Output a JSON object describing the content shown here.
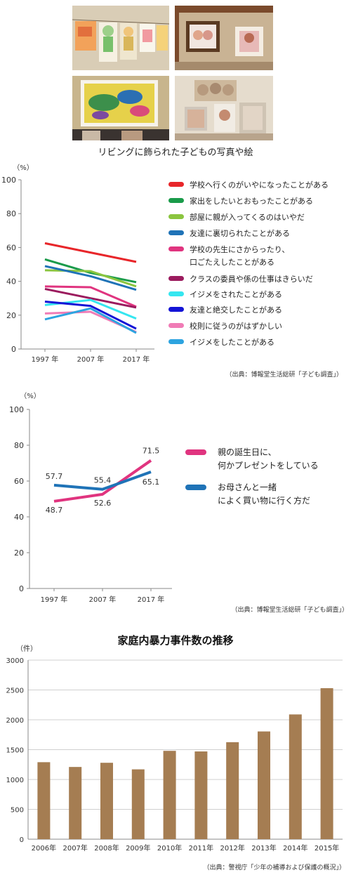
{
  "photo_caption": "リビングに飾られた子どもの写真や絵",
  "chart_data": [
    {
      "type": "line",
      "unit_label": "（%）",
      "x": [
        "1997 年",
        "2007 年",
        "2017 年"
      ],
      "ylim": [
        0,
        100
      ],
      "yticks": [
        0,
        20,
        40,
        60,
        80,
        100
      ],
      "grid": false,
      "legend_position": "right",
      "series": [
        {
          "name": "学校へ行くのがいやになったことがある",
          "values": [
            62.5,
            57,
            51.5
          ],
          "color": "#e8262a"
        },
        {
          "name": "家出をしたいとおもったことがある",
          "values": [
            53,
            45,
            39.5
          ],
          "color": "#1a9b4a"
        },
        {
          "name": "部屋に親が入ってくるのはいやだ",
          "values": [
            46.5,
            46,
            37
          ],
          "color": "#8bc53f"
        },
        {
          "name": "友達に裏切られたことがある",
          "values": [
            49,
            43,
            35
          ],
          "color": "#1f73b7"
        },
        {
          "name": "学校の先生にさからったり、口ごたえしたことがある",
          "values": [
            37,
            36.5,
            25
          ],
          "color": "#e0347f"
        },
        {
          "name": "クラスの委員や係の仕事はきらいだ",
          "values": [
            35.5,
            30,
            24.5
          ],
          "color": "#9b1b5e"
        },
        {
          "name": "イジメをされたことがある",
          "values": [
            26,
            29,
            18
          ],
          "color": "#35e6f0"
        },
        {
          "name": "友達と絶交したことがある",
          "values": [
            28,
            25.5,
            12
          ],
          "color": "#1414d6"
        },
        {
          "name": "校則に従うのがはずかしい",
          "values": [
            21,
            22,
            10
          ],
          "color": "#f07cb6"
        },
        {
          "name": "イジメをしたことがある",
          "values": [
            17.5,
            24,
            9.5
          ],
          "color": "#2da4e0"
        }
      ],
      "source": "（出典：博報堂生活総研「子ども調査」）"
    },
    {
      "type": "line",
      "unit_label": "（%）",
      "x": [
        "1997 年",
        "2007 年",
        "2017 年"
      ],
      "ylim": [
        0,
        100
      ],
      "yticks": [
        0,
        20,
        40,
        60,
        80,
        100
      ],
      "grid": false,
      "legend_position": "right",
      "series": [
        {
          "name": "親の誕生日に、何かプレゼントをしている",
          "values": [
            48.7,
            52.6,
            71.5
          ],
          "labels": [
            "48.7",
            "52.6",
            "71.5"
          ],
          "color": "#e0347f"
        },
        {
          "name": "お母さんと一緒によく買い物に行く方だ",
          "values": [
            57.7,
            55.4,
            65.1
          ],
          "labels": [
            "57.7",
            "55.4",
            "65.1"
          ],
          "color": "#1f73b7"
        }
      ],
      "source": "（出典：博報堂生活総研「子ども調査」）"
    },
    {
      "type": "bar",
      "title": "家庭内暴力事件数の推移",
      "unit_label": "（件）",
      "categories": [
        "2006年",
        "2007年",
        "2008年",
        "2009年",
        "2010年",
        "2011年",
        "2012年",
        "2013年",
        "2014年",
        "2015年"
      ],
      "values": [
        1290,
        1210,
        1280,
        1170,
        1480,
        1470,
        1625,
        1805,
        2090,
        2530
      ],
      "ylim": [
        0,
        3000
      ],
      "yticks": [
        0,
        500,
        1000,
        1500,
        2000,
        2500,
        3000
      ],
      "grid": true,
      "color": "#a57d52",
      "source": "（出典：警視庁「少年の補導および保護の概況」）"
    }
  ]
}
